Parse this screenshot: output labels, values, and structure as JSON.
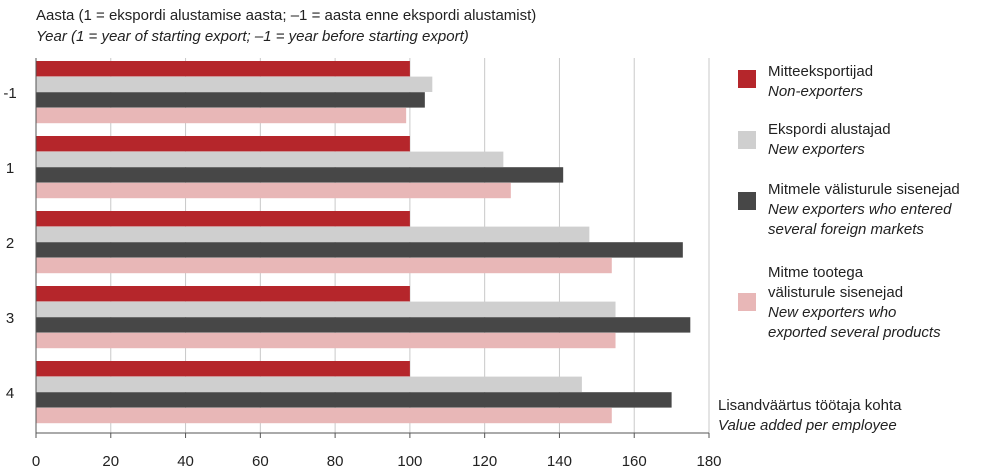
{
  "chart_data": {
    "type": "bar",
    "orientation": "horizontal",
    "title_et": "Aasta (1 = ekspordi alustamise aasta; –1 = aasta enne ekspordi alustamist)",
    "title_en": "Year (1 = year of starting export; –1 = year before starting export)",
    "categories": [
      "-1",
      "1",
      "2",
      "3",
      "4"
    ],
    "series": [
      {
        "name_et": "Mitteeksportijad",
        "name_en": "Non-exporters",
        "color": "#b5262b",
        "values": [
          100,
          100,
          100,
          100,
          100
        ]
      },
      {
        "name_et": "Ekspordi alustajad",
        "name_en": "New exporters",
        "color": "#cfcfcf",
        "values": [
          106,
          125,
          148,
          155,
          146
        ]
      },
      {
        "name_et": "Mitmele välisturule sisenejad",
        "name_en_line1": "New exporters who entered",
        "name_en_line2": "several foreign markets",
        "color": "#474747",
        "values": [
          104,
          141,
          173,
          175,
          170
        ]
      },
      {
        "name_et_line1": "Mitme tootega",
        "name_et_line2": "välisturule sisenejad",
        "name_en_line1": "New exporters who",
        "name_en_line2": "exported several products",
        "color": "#e8b7b7",
        "values": [
          99,
          127,
          154,
          155,
          154
        ]
      }
    ],
    "xlim": [
      0,
      180
    ],
    "xticks": [
      "0",
      "20",
      "40",
      "60",
      "80",
      "100",
      "120",
      "140",
      "160",
      "180"
    ],
    "xlabel_et": "Lisandväärtus töötaja kohta",
    "xlabel_en": "Value added per employee",
    "grid": true,
    "legend_position": "right"
  }
}
